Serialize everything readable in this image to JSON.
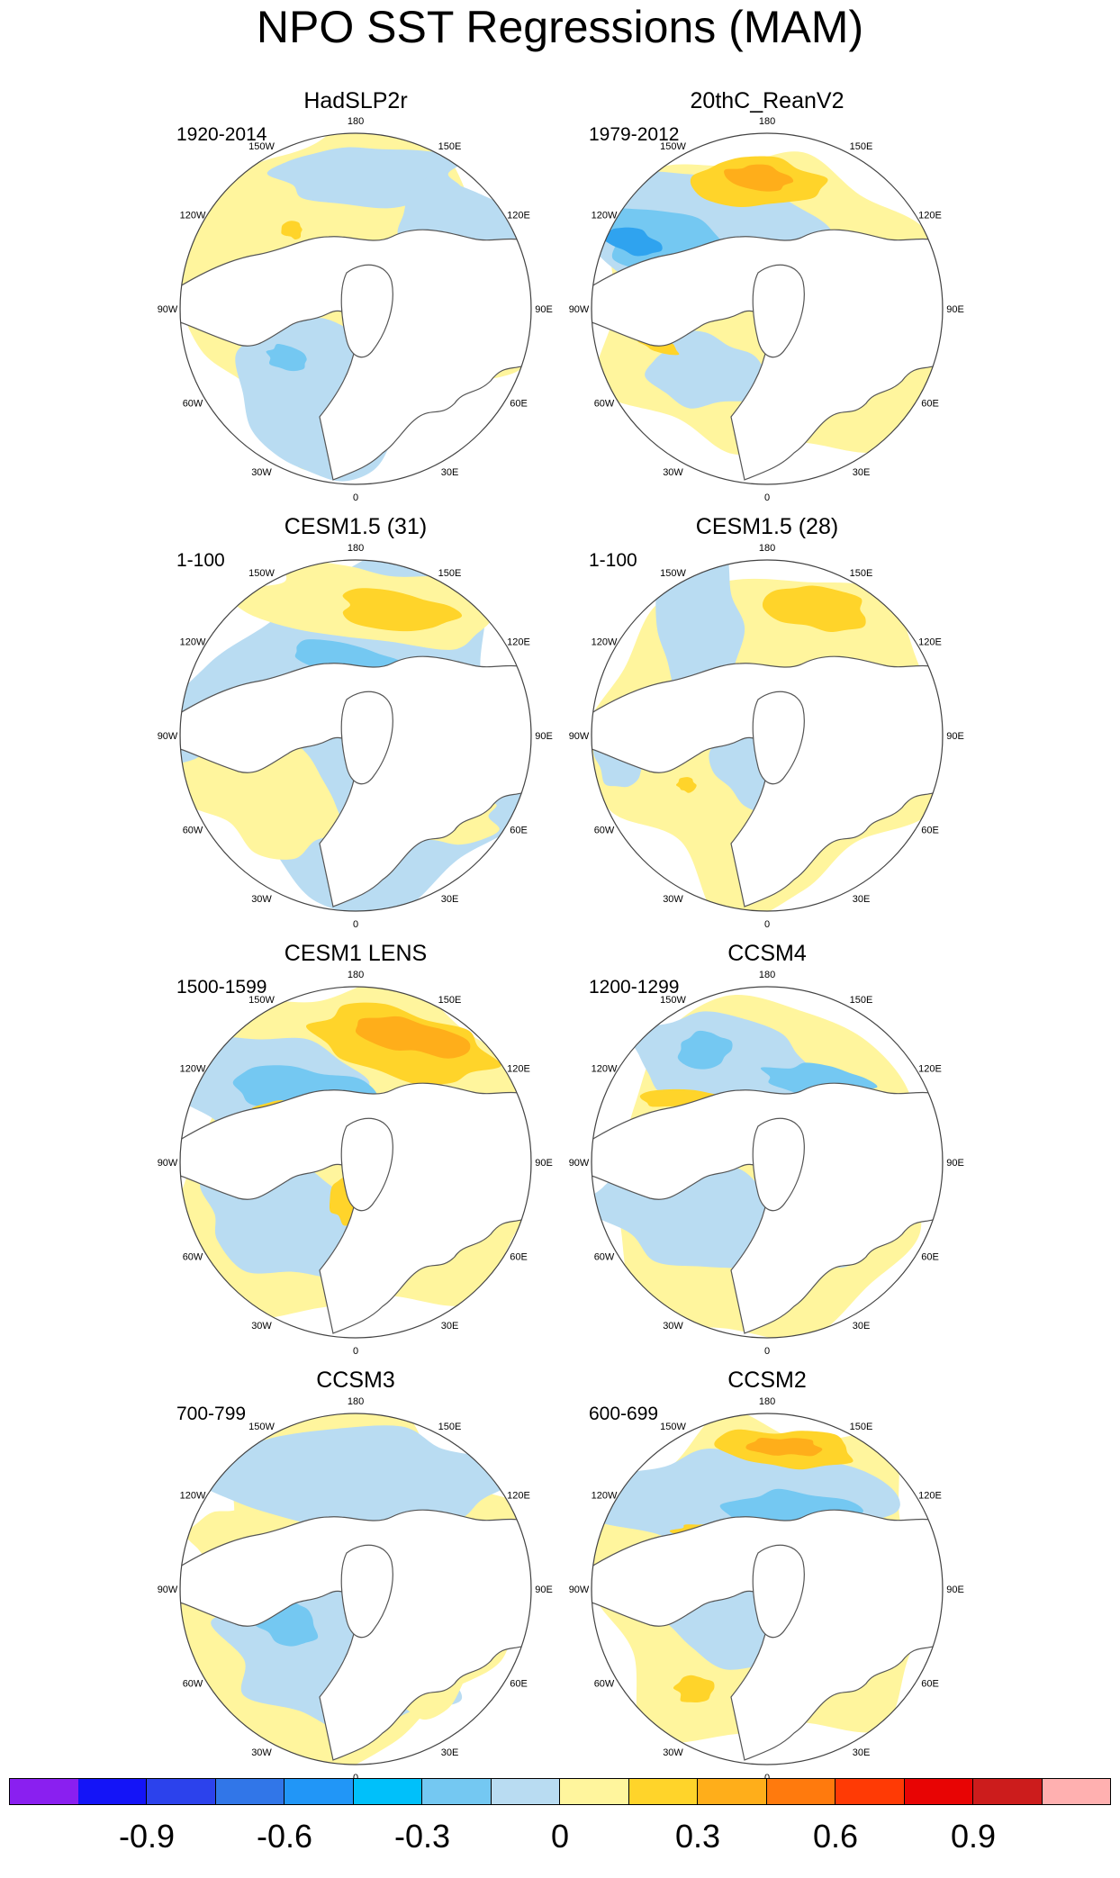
{
  "title": "NPO SST Regressions (MAM)",
  "tick_labels": [
    "180",
    "150E",
    "120E",
    "90E",
    "60E",
    "30E",
    "0",
    "30W",
    "60W",
    "90W",
    "120W",
    "150W"
  ],
  "panels": [
    {
      "title": "HadSLP2r",
      "period": "1920-2014"
    },
    {
      "title": "20thC_ReanV2",
      "period": "1979-2012"
    },
    {
      "title": "CESM1.5 (31)",
      "period": "1-100"
    },
    {
      "title": "CESM1.5 (28)",
      "period": "1-100"
    },
    {
      "title": "CESM1 LENS",
      "period": "1500-1599"
    },
    {
      "title": "CCSM4",
      "period": "1200-1299"
    },
    {
      "title": "CCSM3",
      "period": "700-799"
    },
    {
      "title": "CCSM2",
      "period": "600-699"
    }
  ],
  "colors": {
    "land": "#ffffff",
    "coast": "#555555",
    "border": "#444444",
    "level_neg_small": "#b9dcf2",
    "level_neg_mid": "#74c8f2",
    "level_neg_large": "#2fa3ef",
    "level_pos_small": "#fff59d",
    "level_pos_mid": "#ffd42a",
    "level_pos_large": "#ffae1a"
  },
  "colorbar": {
    "colors": [
      "#8a1ff0",
      "#1414f7",
      "#2c42ec",
      "#3176e8",
      "#2196f7",
      "#00c0fa",
      "#74c8f2",
      "#b9dcf2",
      "#fff59d",
      "#ffd42a",
      "#ffae1a",
      "#ff7a0d",
      "#ff3a05",
      "#e80404",
      "#cc1c1c",
      "#ffb0b0"
    ],
    "labels": [
      "-0.9",
      "-0.6",
      "-0.3",
      "0",
      "0.3",
      "0.6",
      "0.9"
    ]
  }
}
